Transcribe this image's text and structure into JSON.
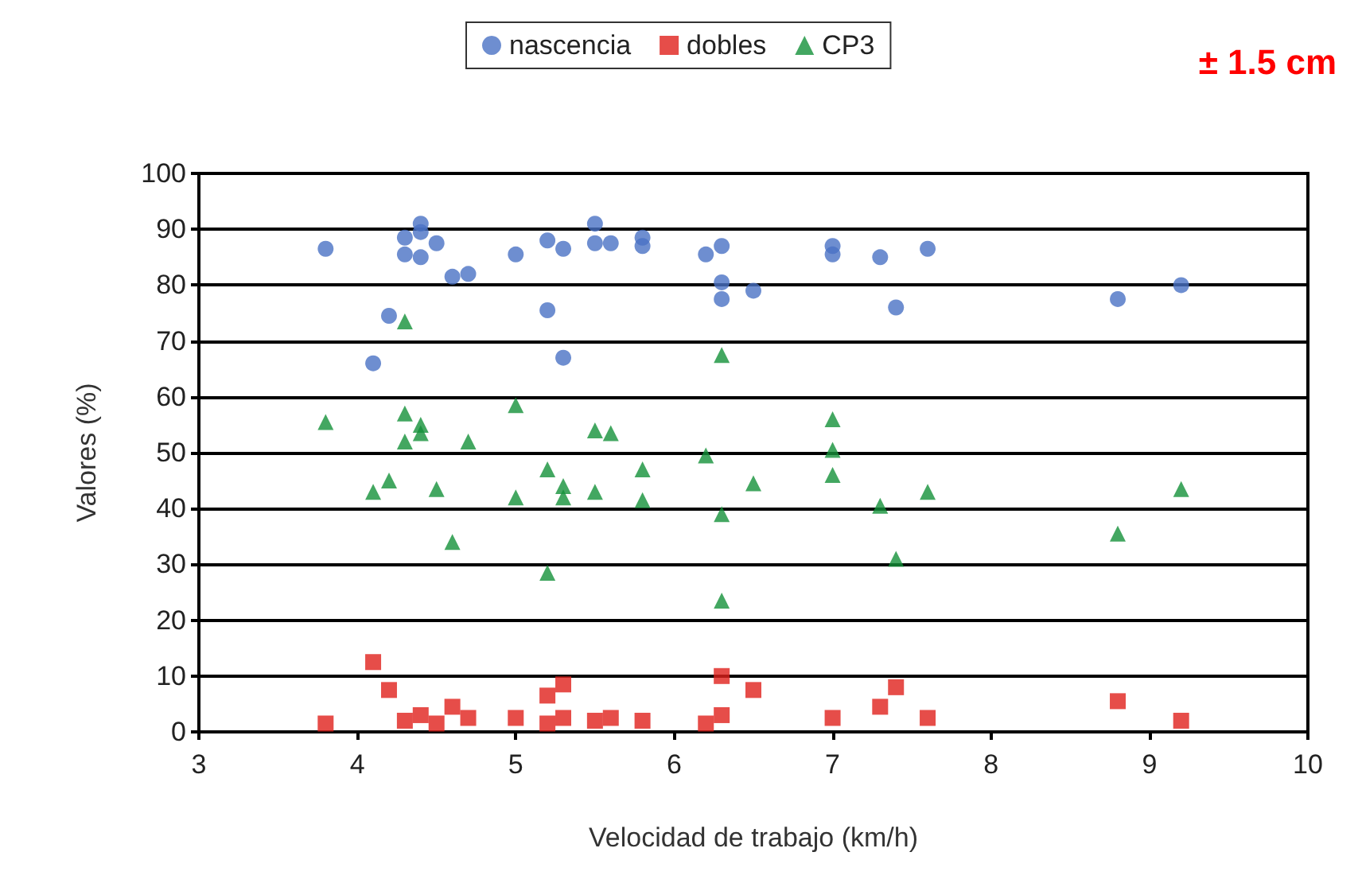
{
  "chart_data": {
    "type": "scatter",
    "xlabel": "Velocidad de trabajo (km/h)",
    "ylabel": "Valores (%)",
    "annotations": [
      "± 1.5 cm"
    ],
    "xlim": [
      3,
      10
    ],
    "xticks": [
      3,
      4,
      5,
      6,
      7,
      8,
      9,
      10
    ],
    "ylim": [
      0,
      100
    ],
    "yticks": [
      0,
      10,
      20,
      30,
      40,
      50,
      60,
      70,
      80,
      90,
      100
    ],
    "grid": "y",
    "legend": "top",
    "series": [
      {
        "name": "nascencia",
        "color": "#4a72c4",
        "marker": "circle",
        "x": [
          3.8,
          4.2,
          4.1,
          4.3,
          4.3,
          4.4,
          4.4,
          4.4,
          4.5,
          4.6,
          4.7,
          5.0,
          5.2,
          5.2,
          5.3,
          5.3,
          5.5,
          5.5,
          5.6,
          5.8,
          5.8,
          6.2,
          6.3,
          6.3,
          6.3,
          6.5,
          7.0,
          7.0,
          7.3,
          7.4,
          7.6,
          8.8,
          9.2
        ],
        "values": [
          86.5,
          74.5,
          66,
          88.5,
          85.5,
          91,
          89.5,
          85,
          87.5,
          81.5,
          82,
          85.5,
          88,
          75.5,
          86.5,
          67,
          91,
          87.5,
          87.5,
          88.5,
          87,
          85.5,
          87,
          80.5,
          77.5,
          79,
          87,
          85.5,
          85,
          76,
          86.5,
          77.5,
          80
        ]
      },
      {
        "name": "dobles",
        "color": "#e0201b",
        "marker": "square",
        "x": [
          3.8,
          4.1,
          4.2,
          4.3,
          4.4,
          4.5,
          4.6,
          4.7,
          5.0,
          5.2,
          5.2,
          5.3,
          5.3,
          5.5,
          5.6,
          5.8,
          6.2,
          6.3,
          6.3,
          6.5,
          7.0,
          7.3,
          7.4,
          7.6,
          8.8,
          9.2
        ],
        "values": [
          1.5,
          12.5,
          7.5,
          2,
          3,
          1.5,
          4.5,
          2.5,
          2.5,
          6.5,
          1.5,
          8.5,
          2.5,
          2,
          2.5,
          2,
          1.5,
          10,
          3,
          7.5,
          2.5,
          4.5,
          8,
          2.5,
          5.5,
          2
        ]
      },
      {
        "name": "CP3",
        "color": "#14913a",
        "marker": "triangle",
        "x": [
          3.8,
          4.1,
          4.2,
          4.3,
          4.3,
          4.3,
          4.4,
          4.4,
          4.5,
          4.6,
          4.7,
          5.0,
          5.0,
          5.2,
          5.2,
          5.3,
          5.3,
          5.5,
          5.5,
          5.6,
          5.8,
          5.8,
          6.2,
          6.3,
          6.3,
          6.3,
          6.5,
          7.0,
          7.0,
          7.0,
          7.3,
          7.4,
          7.6,
          8.8,
          9.2
        ],
        "values": [
          55.5,
          43,
          45,
          73.5,
          57,
          52,
          55,
          53.5,
          43.5,
          34,
          52,
          58.5,
          42,
          47,
          28.5,
          44,
          42,
          54,
          43,
          53.5,
          47,
          41.5,
          49.5,
          67.5,
          39,
          23.5,
          44.5,
          56,
          50.5,
          46,
          40.5,
          31,
          43,
          35.5,
          43.5
        ]
      }
    ]
  }
}
